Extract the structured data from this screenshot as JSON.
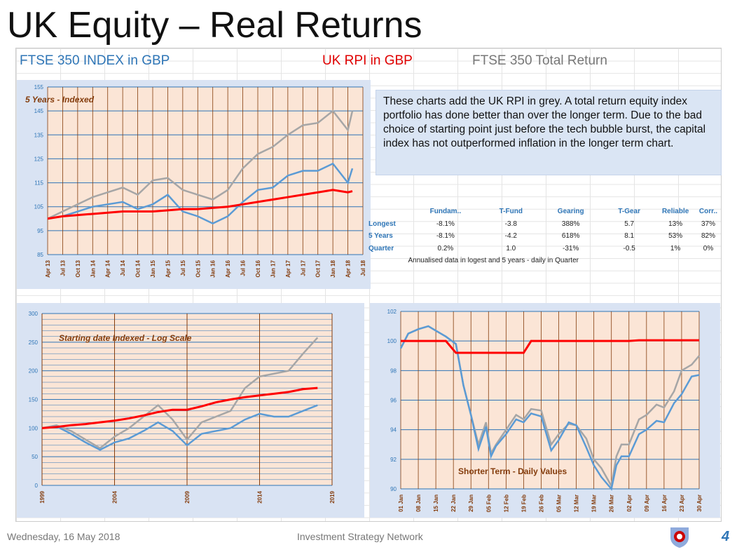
{
  "title": "UK Equity – Real Returns",
  "headers": {
    "ftse": "FTSE 350 INDEX  in  GBP",
    "rpi": "UK RPI  in  GBP",
    "tr": "FTSE 350 Total Return"
  },
  "note": "These charts add the UK RPI in grey.  A total return equity index portfolio has done better than over the longer term. Due to the bad choice of starting point just before the tech bubble burst, the capital index has not outperformed inflation in the longer term chart.",
  "table": {
    "columns": [
      "Fundam..",
      "T-Fund",
      "Gearing",
      "T-Gear",
      "Reliable",
      "Corr.."
    ],
    "rows": [
      {
        "label": "Longest",
        "values": [
          "-8.1%",
          "-3.8",
          "388%",
          "5.7",
          "13%",
          "37%"
        ]
      },
      {
        "label": "5 Years",
        "values": [
          "-8.1%",
          "-4.2",
          "618%",
          "8.1",
          "53%",
          "82%"
        ]
      },
      {
        "label": "Quarter",
        "values": [
          "0.2%",
          "1.0",
          "-31%",
          "-0.5",
          "1%",
          "0%"
        ]
      }
    ],
    "footnote": "Annualised data in logest and 5 years - daily in Quarter"
  },
  "footer": {
    "date": "Wednesday, 16 May 2018",
    "center": "Investment Strategy Network",
    "page": "4"
  },
  "colors": {
    "ftse": "#5b9bd5",
    "rpi": "#ff0000",
    "tr": "#a6a6a6",
    "plot_bg": "#fbe5d6",
    "panel_bg": "#d9e3f3"
  },
  "chart_data": [
    {
      "type": "line",
      "title": "5 Years - Indexed",
      "ylim": [
        85,
        155
      ],
      "yticks": [
        85,
        95,
        105,
        115,
        125,
        135,
        145,
        155
      ],
      "xticks": [
        "Apr 13",
        "Jul 13",
        "Oct 13",
        "Jan 14",
        "Apr 14",
        "Jul 14",
        "Oct 14",
        "Jan 15",
        "Apr 15",
        "Jul 15",
        "Oct 15",
        "Jan 16",
        "Apr 16",
        "Jul 16",
        "Oct 16",
        "Jan 17",
        "Apr 17",
        "Jul 17",
        "Oct 17",
        "Jan 18",
        "Apr 18",
        "Jul 18"
      ],
      "x": [
        0,
        1,
        2,
        3,
        4,
        5,
        6,
        7,
        8,
        9,
        10,
        11,
        12,
        13,
        14,
        15,
        16,
        17,
        18,
        19,
        20,
        20.3
      ],
      "series": [
        {
          "name": "FTSE 350 Total Return",
          "color": "#a6a6a6",
          "values": [
            100,
            103,
            106,
            109,
            111,
            113,
            110,
            116,
            117,
            112,
            110,
            108,
            112,
            121,
            127,
            130,
            135,
            139,
            140,
            145,
            137,
            145
          ]
        },
        {
          "name": "FTSE 350 Index",
          "color": "#5b9bd5",
          "values": [
            100,
            101,
            103,
            105,
            106,
            107,
            104,
            106,
            110,
            103,
            101,
            98,
            101,
            107,
            112,
            113,
            118,
            120,
            120,
            123,
            115,
            121
          ]
        },
        {
          "name": "UK RPI",
          "color": "#ff0000",
          "values": [
            100,
            101,
            101.5,
            102,
            102.5,
            103,
            103,
            103,
            103.5,
            104,
            104,
            104.5,
            105,
            106,
            107,
            108,
            109,
            110,
            111,
            112,
            111,
            111.5
          ]
        }
      ]
    },
    {
      "type": "line",
      "title": "Starting date Indexed - Log Scale",
      "ylim": [
        0,
        300
      ],
      "yticks": [
        0,
        50,
        100,
        150,
        200,
        250,
        300
      ],
      "xticks": [
        "1999",
        "2004",
        "2009",
        "2014",
        "2019"
      ],
      "xlim": [
        1999,
        2019
      ],
      "x": [
        1999,
        2000,
        2001,
        2002,
        2003,
        2004,
        2005,
        2006,
        2007,
        2008,
        2009,
        2010,
        2011,
        2012,
        2013,
        2014,
        2015,
        2016,
        2017,
        2018
      ],
      "series": [
        {
          "name": "FTSE 350 Total Return",
          "color": "#a6a6a6",
          "values": [
            100,
            105,
            95,
            80,
            65,
            85,
            100,
            120,
            140,
            115,
            80,
            110,
            120,
            130,
            170,
            190,
            195,
            200,
            230,
            258
          ]
        },
        {
          "name": "FTSE 350 Index",
          "color": "#5b9bd5",
          "values": [
            100,
            103,
            90,
            75,
            62,
            75,
            82,
            95,
            110,
            95,
            70,
            90,
            95,
            100,
            115,
            125,
            120,
            120,
            130,
            140
          ]
        },
        {
          "name": "UK RPI",
          "color": "#ff0000",
          "values": [
            100,
            102,
            105,
            107,
            110,
            113,
            117,
            122,
            128,
            132,
            132,
            138,
            145,
            150,
            154,
            157,
            160,
            163,
            168,
            170
          ]
        }
      ]
    },
    {
      "type": "line",
      "title": "Shorter Term - Daily Values",
      "ylim": [
        90,
        102
      ],
      "yticks": [
        90,
        92,
        94,
        96,
        98,
        100,
        102
      ],
      "xticks": [
        "01 Jan",
        "08 Jan",
        "15 Jan",
        "22 Jan",
        "29 Jan",
        "05 Feb",
        "12 Feb",
        "19 Feb",
        "26 Feb",
        "05 Mar",
        "12 Mar",
        "19 Mar",
        "26 Mar",
        "02 Apr",
        "09 Apr",
        "16 Apr",
        "23 Apr",
        "30 Apr"
      ],
      "x": [
        0,
        3,
        7,
        11,
        14,
        18,
        22,
        25,
        28,
        31,
        34,
        36,
        38,
        42,
        46,
        49,
        52,
        56,
        60,
        63,
        67,
        70,
        74,
        77,
        80,
        84,
        86,
        88,
        91,
        95,
        98,
        102,
        105,
        109,
        112,
        116,
        119
      ],
      "series": [
        {
          "name": "FTSE 350 Total Return",
          "color": "#a6a6a6",
          "values": [
            99.5,
            100.5,
            100.8,
            101,
            100.7,
            100.3,
            99.8,
            97,
            95,
            93,
            94.5,
            92.4,
            93,
            94,
            95,
            94.7,
            95.4,
            95.3,
            93,
            93.7,
            94.4,
            94.3,
            93.4,
            92,
            91.4,
            90.2,
            92.2,
            93,
            93,
            94.7,
            95,
            95.7,
            95.5,
            96.6,
            98,
            98.4,
            99
          ]
        },
        {
          "name": "FTSE 350 Index",
          "color": "#5b9bd5",
          "values": [
            99.5,
            100.5,
            100.8,
            101,
            100.7,
            100.3,
            99.8,
            97,
            95,
            92.7,
            94.2,
            92.2,
            92.9,
            93.7,
            94.7,
            94.5,
            95.1,
            94.9,
            92.6,
            93.3,
            94.5,
            94.3,
            92.8,
            91.6,
            90.8,
            90,
            91.6,
            92.2,
            92.2,
            93.7,
            94,
            94.6,
            94.5,
            95.8,
            96.4,
            97.6,
            97.7
          ]
        },
        {
          "name": "UK RPI",
          "color": "#ff0000",
          "values": [
            100,
            100,
            100,
            100,
            100,
            100,
            99.2,
            99.2,
            99.2,
            99.2,
            99.2,
            99.2,
            99.2,
            99.2,
            99.2,
            99.2,
            100,
            100,
            100,
            100,
            100,
            100,
            100,
            100,
            100,
            100,
            100,
            100,
            100,
            100.05,
            100.05,
            100.05,
            100.05,
            100.05,
            100.05,
            100.05,
            100.05
          ]
        }
      ]
    }
  ]
}
